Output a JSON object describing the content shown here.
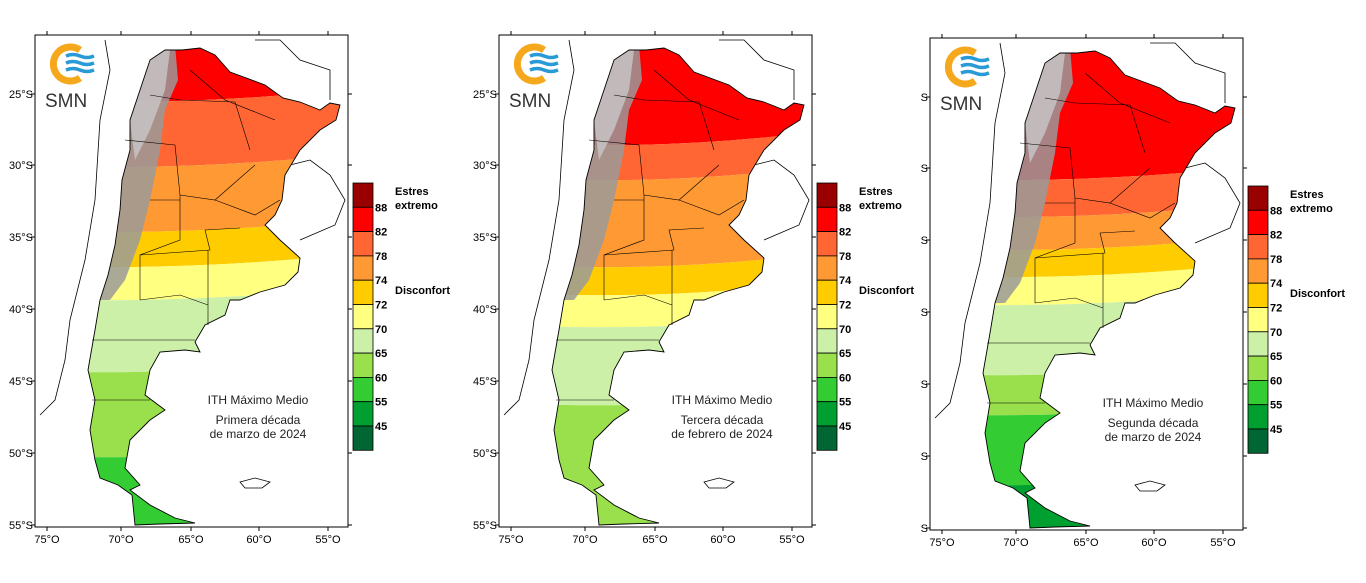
{
  "logo": {
    "text": "SMN"
  },
  "legend": {
    "categories": [
      "Estres extremo",
      "Disconfort"
    ],
    "ticks": [
      "88",
      "82",
      "78",
      "74",
      "72",
      "70",
      "65",
      "60",
      "55",
      "45"
    ],
    "colors": [
      "#990000",
      "#ff0000",
      "#ff6633",
      "#ff9933",
      "#ffcc00",
      "#ffff80",
      "#ccf0a8",
      "#99e04c",
      "#33cc33",
      "#00a030",
      "#006633"
    ]
  },
  "axes": {
    "lat_labels": [
      "25°S",
      "30°S",
      "35°S",
      "40°S",
      "45°S",
      "50°S",
      "55°S"
    ],
    "lon_labels": [
      "75°O",
      "70°O",
      "65°O",
      "60°O",
      "55°O"
    ]
  },
  "maps": [
    {
      "title": "ITH Máximo Medio",
      "period_line1": "Primera década",
      "period_line2": "de marzo de  2024",
      "lat_label_cut": false
    },
    {
      "title": "ITH Máximo Medio",
      "period_line1": "Tercera década",
      "period_line2": "de febrero de  2024",
      "lat_label_cut": false
    },
    {
      "title": "ITH Máximo Medio",
      "period_line1": "Segunda década",
      "period_line2": "de marzo de  2024",
      "lat_label_cut": true
    }
  ]
}
